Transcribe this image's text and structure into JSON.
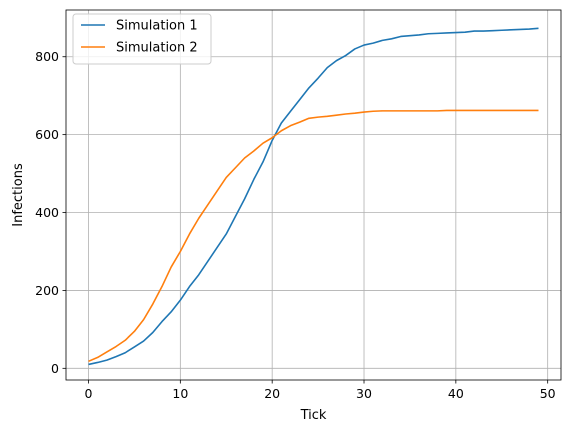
{
  "chart_data": {
    "type": "line",
    "title": "",
    "xlabel": "Tick",
    "ylabel": "Infections",
    "xlim": [
      -2.45,
      51.45
    ],
    "ylim": [
      -30,
      920
    ],
    "xticks": [
      0,
      10,
      20,
      30,
      40,
      50
    ],
    "yticks": [
      0,
      200,
      400,
      600,
      800
    ],
    "grid": true,
    "legend_position": "upper-left",
    "x": [
      0,
      1,
      2,
      3,
      4,
      5,
      6,
      7,
      8,
      9,
      10,
      11,
      12,
      13,
      14,
      15,
      16,
      17,
      18,
      19,
      20,
      21,
      22,
      23,
      24,
      25,
      26,
      27,
      28,
      29,
      30,
      31,
      32,
      33,
      34,
      35,
      36,
      37,
      38,
      39,
      40,
      41,
      42,
      43,
      44,
      45,
      46,
      47,
      48,
      49
    ],
    "series": [
      {
        "name": "Simulation 1",
        "color": "#1f77b4",
        "values": [
          10,
          15,
          21,
          30,
          40,
          55,
          70,
          92,
          120,
          145,
          175,
          210,
          240,
          275,
          310,
          345,
          390,
          435,
          485,
          530,
          585,
          630,
          660,
          690,
          720,
          745,
          772,
          790,
          803,
          820,
          830,
          835,
          842,
          846,
          852,
          854,
          856,
          859,
          860,
          861,
          862,
          863,
          866,
          866,
          867,
          868,
          869,
          870,
          871,
          873
        ]
      },
      {
        "name": "Simulation 2",
        "color": "#ff7f0e",
        "values": [
          18,
          28,
          42,
          56,
          72,
          95,
          125,
          165,
          210,
          260,
          300,
          345,
          385,
          420,
          455,
          490,
          515,
          540,
          558,
          578,
          592,
          610,
          623,
          632,
          642,
          645,
          647,
          650,
          653,
          655,
          658,
          660,
          661,
          661,
          661,
          661,
          661,
          661,
          661,
          662,
          662,
          662,
          662,
          662,
          662,
          662,
          662,
          662,
          662,
          662
        ]
      }
    ]
  }
}
